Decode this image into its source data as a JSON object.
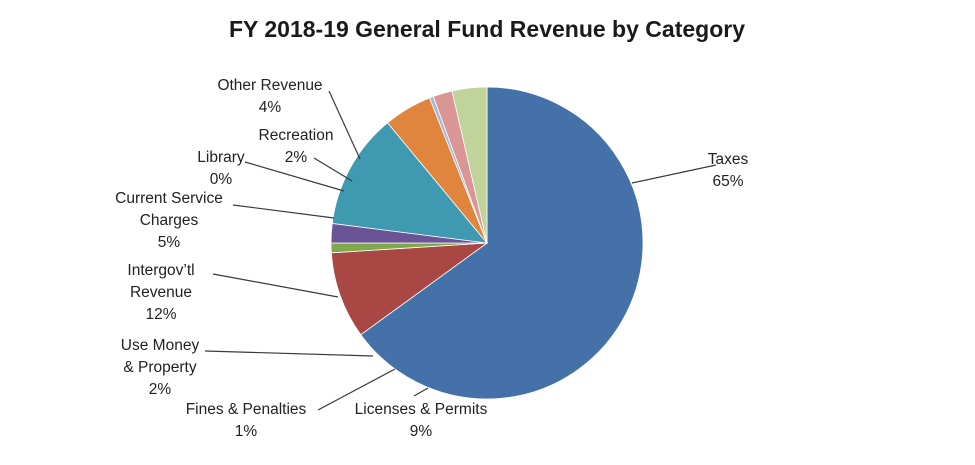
{
  "chart_data": {
    "type": "pie",
    "title": "FY 2018-19 General Fund Revenue by Category",
    "slices": [
      {
        "label": [
          "Taxes"
        ],
        "value": 65,
        "value_label": "65%",
        "color": "#4472A8"
      },
      {
        "label": [
          "Licenses & Permits"
        ],
        "value": 9,
        "value_label": "9%",
        "color": "#A94744"
      },
      {
        "label": [
          "Fines & Penalties"
        ],
        "value": 1,
        "value_label": "1%",
        "color": "#7FA84A"
      },
      {
        "label": [
          "Use Money",
          "& Property"
        ],
        "value": 2,
        "value_label": "2%",
        "color": "#6A5495"
      },
      {
        "label": [
          "Intergov’tl",
          "Revenue"
        ],
        "value": 12,
        "value_label": "12%",
        "color": "#3F99B1"
      },
      {
        "label": [
          "Current Service",
          "Charges"
        ],
        "value": 5,
        "value_label": "5%",
        "color": "#E0853D"
      },
      {
        "label": [
          "Library"
        ],
        "value": 0.4,
        "value_label": "0%",
        "color": "#A5B8D6"
      },
      {
        "label": [
          "Recreation"
        ],
        "value": 2,
        "value_label": "2%",
        "color": "#D99694"
      },
      {
        "label": [
          "Other Revenue"
        ],
        "value": 3.6,
        "value_label": "4%",
        "color": "#BFD39A"
      }
    ],
    "legend": "none"
  }
}
